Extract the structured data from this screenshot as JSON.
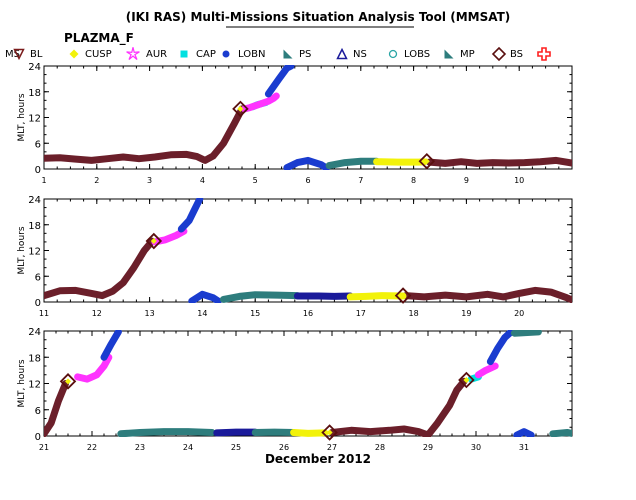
{
  "title": "(IKI RAS) Multi-Missions Situation Analysis Tool (MMSAT)",
  "mission": "PLAZMA_F",
  "legend": {
    "ms_label": "MS",
    "items": [
      {
        "label": "BL",
        "marker": "triangle-down-outline",
        "color": "#7a1b1b"
      },
      {
        "label": "CUSP",
        "marker": "diamond",
        "color": "#f2f20a"
      },
      {
        "label": "AUR",
        "marker": "star-outline",
        "color": "#ff33ff"
      },
      {
        "label": "CAP",
        "marker": "square",
        "color": "#00e0e0"
      },
      {
        "label": "LOBN",
        "marker": "circle",
        "color": "#1a3ccf"
      },
      {
        "label": "PS",
        "marker": "triangle-flag",
        "color": "#2e7d7d"
      },
      {
        "label": "NS",
        "marker": "triangle-outline",
        "color": "#1a1a9a"
      },
      {
        "label": "LOBS",
        "marker": "circle-outline",
        "color": "#2aa5a5"
      },
      {
        "label": "MP",
        "marker": "triangle-flag",
        "color": "#2e7d7d"
      },
      {
        "label": "BS",
        "marker": "diamond-outline",
        "color": "#5a0f0f"
      },
      {
        "label": "",
        "marker": "cross-outline",
        "color": "#ff2020"
      }
    ]
  },
  "xlabel": "December 2012",
  "chart_data": [
    {
      "type": "line",
      "ylabel": "MLT, hours",
      "xlim": [
        1,
        11
      ],
      "ylim": [
        0,
        24
      ],
      "yticks": [
        0,
        6,
        12,
        18,
        24
      ],
      "xticks": [
        "1",
        "2",
        "3",
        "4",
        "5",
        "6",
        "7",
        "8",
        "9",
        "10"
      ],
      "series": [
        {
          "region": "MS",
          "color": "#6b1f2a",
          "points": [
            [
              1,
              2.5
            ],
            [
              1.3,
              2.6
            ],
            [
              1.6,
              2.3
            ],
            [
              1.9,
              2.0
            ],
            [
              2.2,
              2.4
            ],
            [
              2.5,
              2.8
            ],
            [
              2.8,
              2.4
            ],
            [
              3.1,
              2.8
            ],
            [
              3.4,
              3.3
            ],
            [
              3.7,
              3.4
            ],
            [
              3.9,
              2.9
            ],
            [
              4.05,
              2.0
            ],
            [
              4.2,
              3.0
            ],
            [
              4.4,
              6.0
            ],
            [
              4.6,
              10.5
            ],
            [
              4.75,
              14.0
            ]
          ]
        },
        {
          "region": "MS",
          "color": "#6b1f2a",
          "points": [
            [
              8.3,
              1.6
            ],
            [
              8.6,
              1.3
            ],
            [
              8.9,
              1.7
            ],
            [
              9.2,
              1.3
            ],
            [
              9.5,
              1.5
            ],
            [
              9.8,
              1.4
            ],
            [
              10.1,
              1.5
            ],
            [
              10.4,
              1.7
            ],
            [
              10.7,
              2.0
            ],
            [
              11,
              1.4
            ]
          ]
        },
        {
          "region": "CAP",
          "color": "#00e0e0",
          "points": [
            [
              4.95,
              14.5
            ],
            [
              5.05,
              15.0
            ],
            [
              5.2,
              15.5
            ]
          ]
        },
        {
          "region": "AUR",
          "color": "#ff33ff",
          "points": [
            [
              4.8,
              14.0
            ],
            [
              4.9,
              14.3
            ],
            [
              5.25,
              15.8
            ],
            [
              5.35,
              16.5
            ],
            [
              5.4,
              17.0
            ]
          ]
        },
        {
          "region": "LOBN",
          "color": "#1a3ccf",
          "points": [
            [
              5.25,
              17.5
            ],
            [
              5.45,
              21.0
            ],
            [
              5.6,
              23.5
            ],
            [
              5.68,
              24.0
            ]
          ]
        },
        {
          "region": "LOBN",
          "color": "#1a3ccf",
          "points": [
            [
              5.6,
              0.3
            ],
            [
              5.8,
              1.5
            ],
            [
              6.0,
              2.0
            ],
            [
              6.25,
              1.0
            ],
            [
              6.35,
              0.2
            ]
          ]
        },
        {
          "region": "PS",
          "color": "#2e7d7d",
          "points": [
            [
              6.4,
              0.8
            ],
            [
              6.7,
              1.5
            ],
            [
              7.0,
              1.8
            ],
            [
              7.3,
              1.8
            ]
          ]
        },
        {
          "region": "CUSP",
          "color": "#f2f20a",
          "points": [
            [
              7.3,
              1.7
            ],
            [
              7.7,
              1.6
            ],
            [
              8.1,
              1.6
            ],
            [
              8.2,
              1.7
            ]
          ]
        }
      ],
      "boundaries": [
        {
          "type": "BS",
          "x": 4.72,
          "y": 14.0
        },
        {
          "type": "BS",
          "x": 8.25,
          "y": 1.8
        }
      ]
    },
    {
      "type": "line",
      "ylabel": "MLT, hours",
      "xlim": [
        11,
        21
      ],
      "ylim": [
        0,
        24
      ],
      "yticks": [
        0,
        6,
        12,
        18,
        24
      ],
      "xticks": [
        "11",
        "12",
        "13",
        "14",
        "15",
        "16",
        "17",
        "18",
        "19",
        "20"
      ],
      "series": [
        {
          "region": "MS",
          "color": "#6b1f2a",
          "points": [
            [
              11,
              1.5
            ],
            [
              11.3,
              2.6
            ],
            [
              11.6,
              2.7
            ],
            [
              11.9,
              2.0
            ],
            [
              12.1,
              1.5
            ],
            [
              12.3,
              2.5
            ],
            [
              12.5,
              4.5
            ],
            [
              12.7,
              8.0
            ],
            [
              12.9,
              12.0
            ],
            [
              13.05,
              14.2
            ]
          ]
        },
        {
          "region": "MS",
          "color": "#6b1f2a",
          "points": [
            [
              17.85,
              1.5
            ],
            [
              18.2,
              1.2
            ],
            [
              18.6,
              1.6
            ],
            [
              19.0,
              1.2
            ],
            [
              19.4,
              1.8
            ],
            [
              19.7,
              1.2
            ],
            [
              20.0,
              2.0
            ],
            [
              20.3,
              2.7
            ],
            [
              20.6,
              2.3
            ],
            [
              20.9,
              1.0
            ],
            [
              21,
              0.5
            ]
          ]
        },
        {
          "region": "AUR",
          "color": "#ff33ff",
          "points": [
            [
              13.1,
              14.0
            ],
            [
              13.3,
              14.5
            ],
            [
              13.5,
              15.5
            ],
            [
              13.65,
              16.5
            ]
          ]
        },
        {
          "region": "LOBN",
          "color": "#1a3ccf",
          "points": [
            [
              13.6,
              17.0
            ],
            [
              13.75,
              19.0
            ],
            [
              13.85,
              21.5
            ],
            [
              13.95,
              24.0
            ]
          ]
        },
        {
          "region": "LOBN",
          "color": "#1a3ccf",
          "points": [
            [
              13.8,
              0.2
            ],
            [
              14.0,
              1.8
            ],
            [
              14.2,
              1.0
            ],
            [
              14.3,
              0.2
            ]
          ]
        },
        {
          "region": "PS",
          "color": "#2e7d7d",
          "points": [
            [
              14.4,
              0.6
            ],
            [
              14.7,
              1.3
            ],
            [
              15.0,
              1.7
            ],
            [
              15.4,
              1.6
            ],
            [
              15.8,
              1.5
            ]
          ]
        },
        {
          "region": "NS",
          "color": "#1a1a9a",
          "points": [
            [
              15.8,
              1.4
            ],
            [
              16.2,
              1.4
            ],
            [
              16.5,
              1.3
            ],
            [
              16.8,
              1.4
            ]
          ]
        },
        {
          "region": "CUSP",
          "color": "#f2f20a",
          "points": [
            [
              16.8,
              1.2
            ],
            [
              17.1,
              1.3
            ],
            [
              17.4,
              1.5
            ],
            [
              17.8,
              1.4
            ]
          ]
        }
      ],
      "boundaries": [
        {
          "type": "BS",
          "x": 13.08,
          "y": 14.2
        },
        {
          "type": "BS",
          "x": 17.8,
          "y": 1.5
        }
      ]
    },
    {
      "type": "line",
      "ylabel": "MLT, hours",
      "xlim": [
        21,
        32
      ],
      "ylim": [
        0,
        24
      ],
      "yticks": [
        0,
        6,
        12,
        18,
        24
      ],
      "xticks": [
        "21",
        "22",
        "23",
        "24",
        "25",
        "26",
        "27",
        "28",
        "29",
        "30",
        "31"
      ],
      "series": [
        {
          "region": "MS",
          "color": "#6b1f2a",
          "points": [
            [
              21,
              0.5
            ],
            [
              21.15,
              3.0
            ],
            [
              21.3,
              8.0
            ],
            [
              21.45,
              12.0
            ]
          ]
        },
        {
          "region": "MS",
          "color": "#6b1f2a",
          "points": [
            [
              27.0,
              0.8
            ],
            [
              27.4,
              1.3
            ],
            [
              27.8,
              1.0
            ],
            [
              28.2,
              1.3
            ],
            [
              28.5,
              1.6
            ],
            [
              28.8,
              1.0
            ],
            [
              29.0,
              0.2
            ],
            [
              29.2,
              3.0
            ],
            [
              29.45,
              7.0
            ],
            [
              29.6,
              10.5
            ],
            [
              29.75,
              12.5
            ]
          ]
        },
        {
          "region": "AUR",
          "color": "#ff33ff",
          "points": [
            [
              21.7,
              13.5
            ],
            [
              21.9,
              13.0
            ],
            [
              22.1,
              14.0
            ],
            [
              22.25,
              16.0
            ],
            [
              22.35,
              18.0
            ]
          ]
        },
        {
          "region": "LOBN",
          "color": "#1a3ccf",
          "points": [
            [
              22.25,
              18.0
            ],
            [
              22.4,
              21.0
            ],
            [
              22.55,
              23.8
            ]
          ]
        },
        {
          "region": "PS",
          "color": "#2e7d7d",
          "points": [
            [
              22.6,
              0.5
            ],
            [
              23.0,
              0.8
            ],
            [
              23.5,
              1.0
            ],
            [
              24.0,
              1.0
            ],
            [
              24.5,
              0.8
            ]
          ]
        },
        {
          "region": "NS",
          "color": "#1a1a9a",
          "points": [
            [
              24.6,
              0.7
            ],
            [
              25.0,
              0.9
            ],
            [
              25.4,
              0.9
            ]
          ]
        },
        {
          "region": "PS",
          "color": "#2e7d7d",
          "points": [
            [
              25.4,
              0.8
            ],
            [
              25.8,
              0.9
            ],
            [
              26.2,
              0.8
            ]
          ]
        },
        {
          "region": "CUSP",
          "color": "#f2f20a",
          "points": [
            [
              26.2,
              0.8
            ],
            [
              26.5,
              0.6
            ],
            [
              26.85,
              0.7
            ]
          ]
        },
        {
          "region": "CAP",
          "color": "#00e0e0",
          "points": [
            [
              29.9,
              13.0
            ],
            [
              30.05,
              13.5
            ]
          ]
        },
        {
          "region": "AUR",
          "color": "#ff33ff",
          "points": [
            [
              30.05,
              14.0
            ],
            [
              30.2,
              15.0
            ],
            [
              30.4,
              16.0
            ]
          ]
        },
        {
          "region": "LOBN",
          "color": "#1a3ccf",
          "points": [
            [
              30.3,
              17.0
            ],
            [
              30.45,
              20.0
            ],
            [
              30.6,
              22.5
            ],
            [
              30.75,
              24.0
            ]
          ]
        },
        {
          "region": "PS",
          "color": "#2e7d7d",
          "points": [
            [
              30.8,
              23.5
            ],
            [
              31.3,
              23.8
            ]
          ]
        },
        {
          "region": "LOBN",
          "color": "#1a3ccf",
          "points": [
            [
              30.85,
              0.2
            ],
            [
              31.0,
              1.0
            ],
            [
              31.15,
              0.2
            ]
          ]
        },
        {
          "region": "PS",
          "color": "#2e7d7d",
          "points": [
            [
              31.6,
              0.5
            ],
            [
              31.9,
              0.8
            ],
            [
              32.0,
              0.6
            ]
          ]
        }
      ],
      "boundaries": [
        {
          "type": "BS",
          "x": 21.5,
          "y": 12.5
        },
        {
          "type": "BS",
          "x": 26.95,
          "y": 0.8
        },
        {
          "type": "BS",
          "x": 29.8,
          "y": 12.8
        }
      ]
    }
  ]
}
